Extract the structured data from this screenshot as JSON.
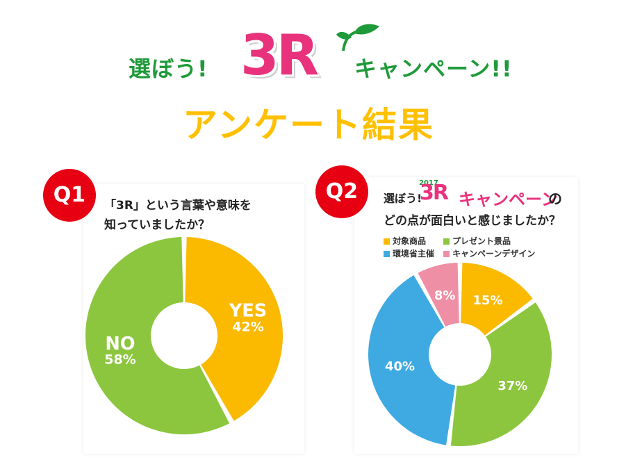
{
  "header": {
    "left_text": "選ぼう!",
    "logo": "3R",
    "right_text": "キャンペーン!!",
    "subtitle": "アンケート結果"
  },
  "colors": {
    "green": "#1f9a3a",
    "pink": "#e8327c",
    "yellow": "#ffc000",
    "red_badge": "#e60012",
    "slice_orange": "#fbb900",
    "slice_green": "#8cc63e",
    "slice_blue": "#3eaae1",
    "slice_pink": "#ee8fa5"
  },
  "q1": {
    "badge": "Q1",
    "question_line1": "「3R」という言葉や意味を",
    "question_line2": "知っていましたか？"
  },
  "q2": {
    "badge": "Q2",
    "title_prefix": "選ぼう!",
    "title_year": "2017",
    "title_logo": "3R",
    "title_campaign": "キャンペーン",
    "title_suffix": "の",
    "question_line2": "どの点が面白いと感じましたか？",
    "legend": [
      "対象商品",
      "プレゼント景品",
      "環境省主催",
      "キャンペーンデザイン"
    ]
  },
  "chart_data": [
    {
      "type": "pie",
      "title": "「3R」という言葉や意味を知っていましたか？",
      "categories": [
        "YES",
        "NO"
      ],
      "values": [
        42,
        58
      ],
      "labels": [
        "YES\n42%",
        "NO\n58%"
      ],
      "colors": [
        "#fbb900",
        "#8cc63e"
      ],
      "donut": true
    },
    {
      "type": "pie",
      "title": "選ぼう! 3Rキャンペーンのどの点が面白いと感じましたか？",
      "categories": [
        "対象商品",
        "プレゼント景品",
        "環境省主催",
        "キャンペーンデザイン"
      ],
      "values": [
        15,
        37,
        40,
        8
      ],
      "labels": [
        "15%",
        "37%",
        "40%",
        "8%"
      ],
      "colors": [
        "#fbb900",
        "#8cc63e",
        "#3eaae1",
        "#ee8fa5"
      ],
      "donut": true,
      "legend": "top"
    }
  ]
}
